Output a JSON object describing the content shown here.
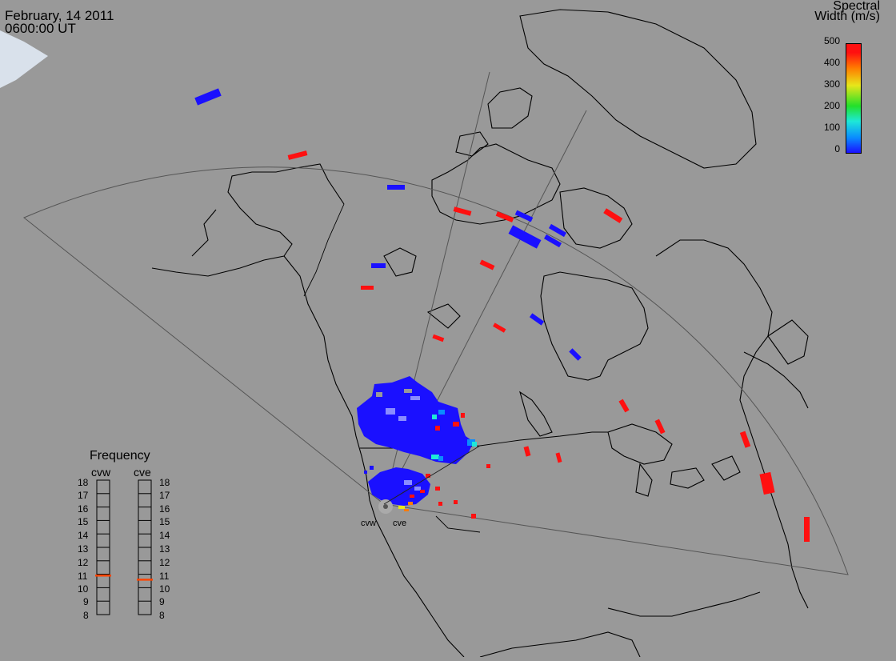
{
  "header": {
    "date": "February, 14 2011",
    "time": "0600:00 UT"
  },
  "colorbar": {
    "title_line1": "Spectral",
    "title_line2": "Width (m/s)",
    "ticks": [
      "500",
      "400",
      "300",
      "200",
      "100",
      "0"
    ],
    "range": [
      0,
      500
    ],
    "colors": [
      "#1a10ff",
      "#0a8cff",
      "#1ee8d8",
      "#22e02a",
      "#e8e61a",
      "#ff7b00",
      "#ff1010"
    ]
  },
  "frequency": {
    "title": "Frequency",
    "radars": [
      "cvw",
      "cve"
    ],
    "scale_labels": [
      "18",
      "17",
      "16",
      "15",
      "14",
      "13",
      "12",
      "11",
      "10",
      "9",
      "8"
    ],
    "range_mhz": [
      8,
      18
    ],
    "values_mhz": [
      10.9,
      10.6
    ],
    "marker_color": "#ff4400"
  },
  "radars": {
    "cvw_label": "cvw",
    "cve_label": "cve"
  },
  "map": {
    "land_color": "#999999",
    "coast_color": "#000000",
    "fov_color": "#555555"
  }
}
